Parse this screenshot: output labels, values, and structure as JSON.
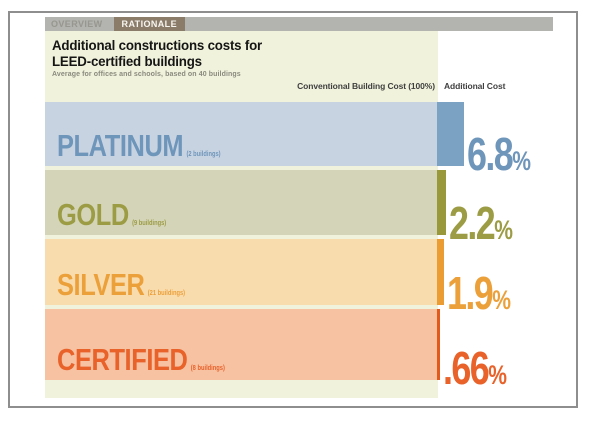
{
  "tab_bar": {
    "overview": "OVERVIEW",
    "rationale": "RATIONALE"
  },
  "header": {
    "title_line1": "Additional constructions costs for",
    "title_line2": "LEED-certified buildings",
    "subtitle": "Average for offices and schools, based on 40 buildings"
  },
  "columns": {
    "conventional": "Conventional Building Cost (100%)",
    "additional": "Additional Cost"
  },
  "percent_sign": "%",
  "rows": [
    {
      "name": "PLATINUM",
      "count": "(2 buildings)",
      "value": 6.8,
      "value_text": "6.8",
      "bg": "#c8d3e2",
      "accent": "#6e95ba",
      "bar": "#7ba1c3"
    },
    {
      "name": "GOLD",
      "count": "(9 buildings)",
      "value": 2.2,
      "value_text": "2.2",
      "bg": "#d4d4b9",
      "accent": "#9c9c45",
      "bar": "#99993c"
    },
    {
      "name": "SILVER",
      "count": "(21 buildings)",
      "value": 1.9,
      "value_text": "1.9",
      "bg": "#f9dcad",
      "accent": "#eca03a",
      "bar": "#eb9c33"
    },
    {
      "name": "CERTIFIED",
      "count": "(8 buildings)",
      "value": 0.66,
      "value_text": ".66",
      "bg": "#f7c2a2",
      "accent": "#e8622a",
      "bar": "#e25a1c"
    }
  ],
  "colors": {
    "frame_border": "#8e8e8e",
    "tab_bar": "#b3b3af",
    "tab_inactive_text": "#97978f",
    "tab_active_bg": "#8b7c69",
    "tab_active_text": "#f7f5f0",
    "panel_bg": "#f1f2dc",
    "title_text": "#151515",
    "subtitle_text": "#8a8a7e",
    "header_text": "#3f3f3f"
  },
  "chart_data": {
    "type": "bar",
    "orientation": "horizontal",
    "title": "Additional constructions costs for LEED-certified buildings",
    "subtitle": "Average for offices and schools, based on 40 buildings",
    "categories": [
      "PLATINUM",
      "GOLD",
      "SILVER",
      "CERTIFIED"
    ],
    "category_counts": [
      "(2 buildings)",
      "(9 buildings)",
      "(21 buildings)",
      "(8 buildings)"
    ],
    "values": [
      6.8,
      2.2,
      1.9,
      0.66
    ],
    "value_labels": [
      "6.8%",
      "2.2%",
      "1.9%",
      ".66%"
    ],
    "baseline_label": "Conventional Building Cost (100%)",
    "series_label": "Additional Cost",
    "xlim": [
      0,
      100
    ],
    "grid": false,
    "legend": false
  }
}
